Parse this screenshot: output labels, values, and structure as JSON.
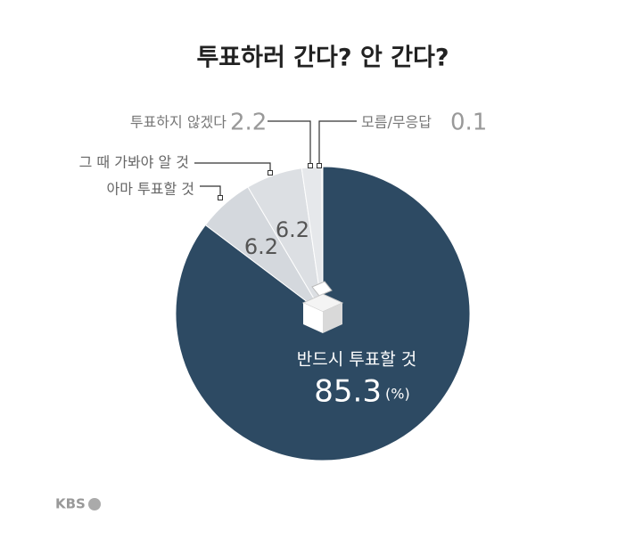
{
  "chart_data": {
    "type": "pie",
    "title": "투표하러 간다? 안 간다?",
    "categories": [
      "반드시 투표할 것",
      "아마 투표할 것",
      "그 때 가봐야 알 것",
      "투표하지 않겠다",
      "모름/무응답"
    ],
    "values": [
      85.3,
      6.2,
      6.2,
      2.2,
      0.1
    ],
    "colors": [
      "#2d4a63",
      "#d4d8dd",
      "#dcdfe3",
      "#e6e8eb",
      "#eef0f2"
    ],
    "unit": "(%)"
  },
  "logo": "KBS"
}
